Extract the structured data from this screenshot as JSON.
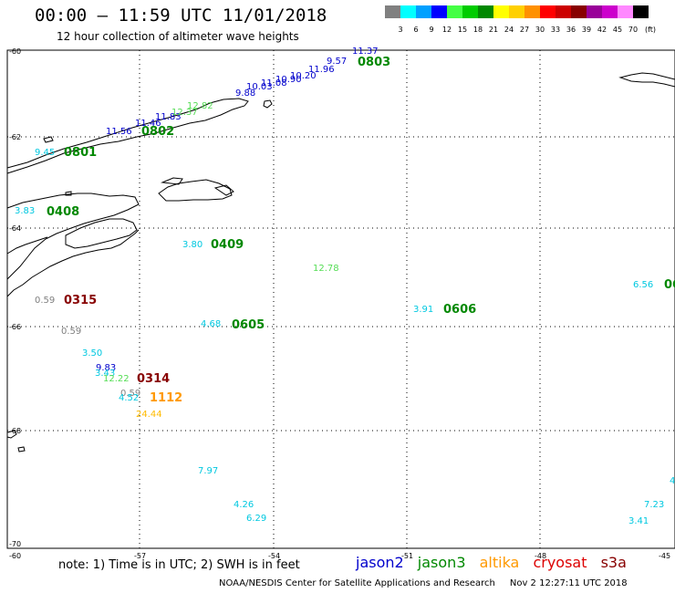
{
  "title": "00:00  –  11:59  UTC  11/01/2018",
  "subtitle": "12 hour collection of altimeter wave heights",
  "legend": {
    "unit": "(ft)",
    "bins": [
      {
        "label": "3",
        "color": "#808080"
      },
      {
        "label": "6",
        "color": "#00ffff"
      },
      {
        "label": "9",
        "color": "#00a0ff"
      },
      {
        "label": "12",
        "color": "#0000ff"
      },
      {
        "label": "15",
        "color": "#44ff44"
      },
      {
        "label": "18",
        "color": "#00cc00"
      },
      {
        "label": "21",
        "color": "#008800"
      },
      {
        "label": "24",
        "color": "#ffff00"
      },
      {
        "label": "27",
        "color": "#ffd000"
      },
      {
        "label": "30",
        "color": "#ff9000"
      },
      {
        "label": "33",
        "color": "#ff0000"
      },
      {
        "label": "36",
        "color": "#cc0000"
      },
      {
        "label": "39",
        "color": "#880000"
      },
      {
        "label": "42",
        "color": "#990099"
      },
      {
        "label": "45",
        "color": "#cc00cc"
      },
      {
        "label": "70",
        "color": "#ff88ff"
      },
      {
        "label": "",
        "color": "#000000"
      }
    ]
  },
  "lat_labels": [
    "-60",
    "-62",
    "-64",
    "-66",
    "-68",
    "-70"
  ],
  "lon_labels": [
    "-60",
    "-57",
    "-54",
    "-51",
    "-48",
    "-45"
  ],
  "note": "note:  1) Time is in UTC;  2) SWH is in feet",
  "satellites": [
    {
      "name": "jason2",
      "color": "#0000cc"
    },
    {
      "name": "jason3",
      "color": "#008800"
    },
    {
      "name": "altika",
      "color": "#ff9900"
    },
    {
      "name": "cryosat",
      "color": "#dd0000"
    },
    {
      "name": "s3a",
      "color": "#880000"
    }
  ],
  "footer": {
    "org": "NOAA/NESDIS Center for Satellite Applications and Research",
    "timestamp": "Nov  2 12:27:11 UTC 2018"
  },
  "observations": [
    {
      "text": "11.37",
      "color": "#0000cc"
    },
    {
      "text": "9.57",
      "color": "#0000cc"
    },
    {
      "text": "11.96",
      "color": "#0000cc"
    },
    {
      "text": "10.20",
      "color": "#0000cc"
    },
    {
      "text": "10.90",
      "color": "#0000cc"
    },
    {
      "text": "11.08",
      "color": "#0000cc"
    },
    {
      "text": "10.03",
      "color": "#0000cc"
    },
    {
      "text": "9.88",
      "color": "#0000cc"
    },
    {
      "text": "11.83",
      "color": "#0000cc"
    },
    {
      "text": "11.46",
      "color": "#0000cc"
    },
    {
      "text": "11.56",
      "color": "#0000cc"
    },
    {
      "text": "12.82",
      "color": "#55dd55"
    },
    {
      "text": "12.37",
      "color": "#55dd55"
    },
    {
      "text": "9.45",
      "color": "#00c8e0"
    },
    {
      "text": "3.83",
      "color": "#00c8e0"
    },
    {
      "text": "3.80",
      "color": "#00c8e0"
    },
    {
      "text": "12.78",
      "color": "#55dd55"
    },
    {
      "text": "6.56",
      "color": "#00c8e0"
    },
    {
      "text": "0.59",
      "color": "#808080"
    },
    {
      "text": "0.59",
      "color": "#808080"
    },
    {
      "text": "3.91",
      "color": "#00c8e0"
    },
    {
      "text": "4.68",
      "color": "#00c8e0"
    },
    {
      "text": "3.50",
      "color": "#00c8e0"
    },
    {
      "text": "9.83",
      "color": "#0000cc"
    },
    {
      "text": "3.43",
      "color": "#00c8e0"
    },
    {
      "text": "12.22",
      "color": "#55dd55"
    },
    {
      "text": "0.59",
      "color": "#808080"
    },
    {
      "text": "4.52",
      "color": "#00c8e0"
    },
    {
      "text": "24.44",
      "color": "#ffbb00"
    },
    {
      "text": "7.97",
      "color": "#00c8e0"
    },
    {
      "text": "4.26",
      "color": "#00c8e0"
    },
    {
      "text": "6.29",
      "color": "#00c8e0"
    },
    {
      "text": "7.23",
      "color": "#00c8e0"
    },
    {
      "text": "3.41",
      "color": "#00c8e0"
    },
    {
      "text": "4",
      "color": "#00c8e0"
    }
  ],
  "track_labels": [
    {
      "text": "0803",
      "color": "#008800"
    },
    {
      "text": "0802",
      "color": "#008800"
    },
    {
      "text": "0801",
      "color": "#008800"
    },
    {
      "text": "0408",
      "color": "#008800"
    },
    {
      "text": "0409",
      "color": "#008800"
    },
    {
      "text": "0315",
      "color": "#880000"
    },
    {
      "text": "0606",
      "color": "#008800"
    },
    {
      "text": "0605",
      "color": "#008800"
    },
    {
      "text": "0314",
      "color": "#880000"
    },
    {
      "text": "1112",
      "color": "#ff9900"
    },
    {
      "text": "06",
      "color": "#008800"
    }
  ]
}
